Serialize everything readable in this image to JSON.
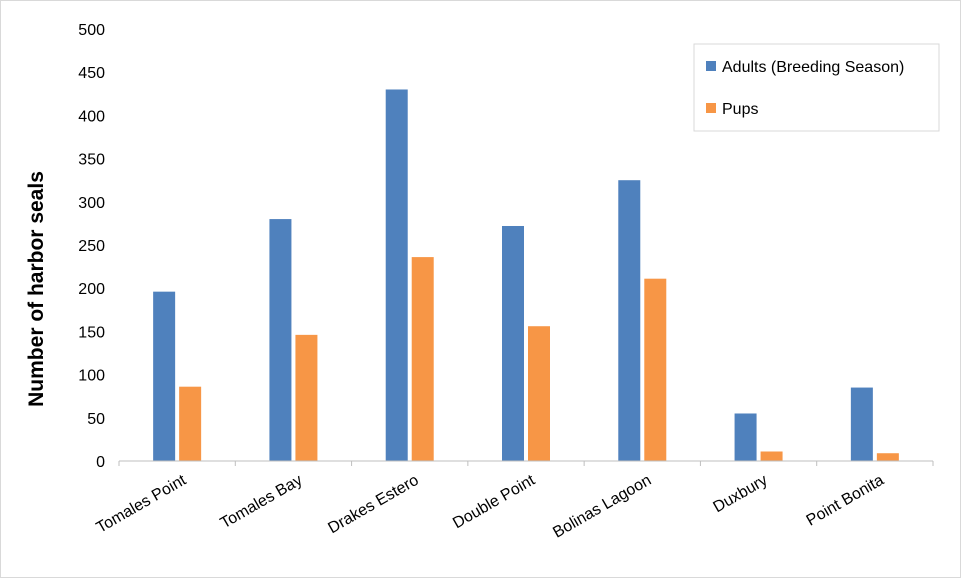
{
  "chart_data": {
    "type": "bar",
    "title": "",
    "xlabel": "",
    "ylabel": "Number of harbor seals",
    "ylim": [
      0,
      500
    ],
    "yticks": [
      0,
      50,
      100,
      150,
      200,
      250,
      300,
      350,
      400,
      450,
      500
    ],
    "categories": [
      "Tomales Point",
      "Tomales Bay",
      "Drakes Estero",
      "Double Point",
      "Bolinas Lagoon",
      "Duxbury",
      "Point Bonita"
    ],
    "series": [
      {
        "name": "Adults (Breeding Season)",
        "color": "#4f81bd",
        "values": [
          196,
          280,
          430,
          272,
          325,
          55,
          85
        ]
      },
      {
        "name": "Pups",
        "color": "#f79646",
        "values": [
          86,
          146,
          236,
          156,
          211,
          11,
          9
        ]
      }
    ],
    "grid": false,
    "legend_position": "top-right"
  }
}
